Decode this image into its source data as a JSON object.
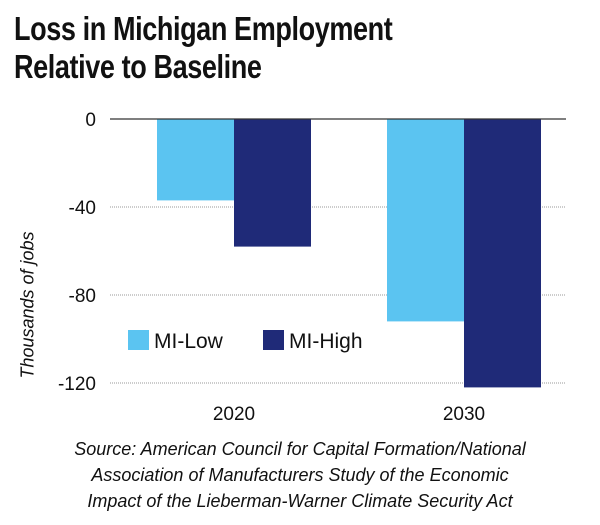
{
  "chart_data": {
    "type": "bar",
    "title": "Loss in Michigan Employment Relative to Baseline",
    "title_lines": [
      "Loss in Michigan Employment",
      "Relative to Baseline"
    ],
    "categories": [
      "2020",
      "2030"
    ],
    "series": [
      {
        "name": "MI-Low",
        "values": [
          -37,
          -92
        ],
        "color": "#5bc4f1"
      },
      {
        "name": "MI-High",
        "values": [
          -58,
          -122
        ],
        "color": "#1f2a78"
      }
    ],
    "xlabel": "",
    "ylabel": "Thousands of jobs",
    "ylim": [
      -120,
      0
    ],
    "yticks": [
      0,
      -40,
      -80,
      -120
    ],
    "ytick_labels": [
      "0",
      "-40",
      "-80",
      "-120"
    ],
    "grid": "horizontal dotted",
    "legend": "inside lower-left",
    "source": "Source: American Council for Capital Formation/National Association of Manufacturers Study of the Economic Impact of the Lieberman-Warner Climate Security Act",
    "source_lines": [
      "Source: American Council for Capital Formation/National",
      "Association of Manufacturers Study of the Economic",
      "Impact of the Lieberman-Warner Climate Security Act"
    ]
  }
}
